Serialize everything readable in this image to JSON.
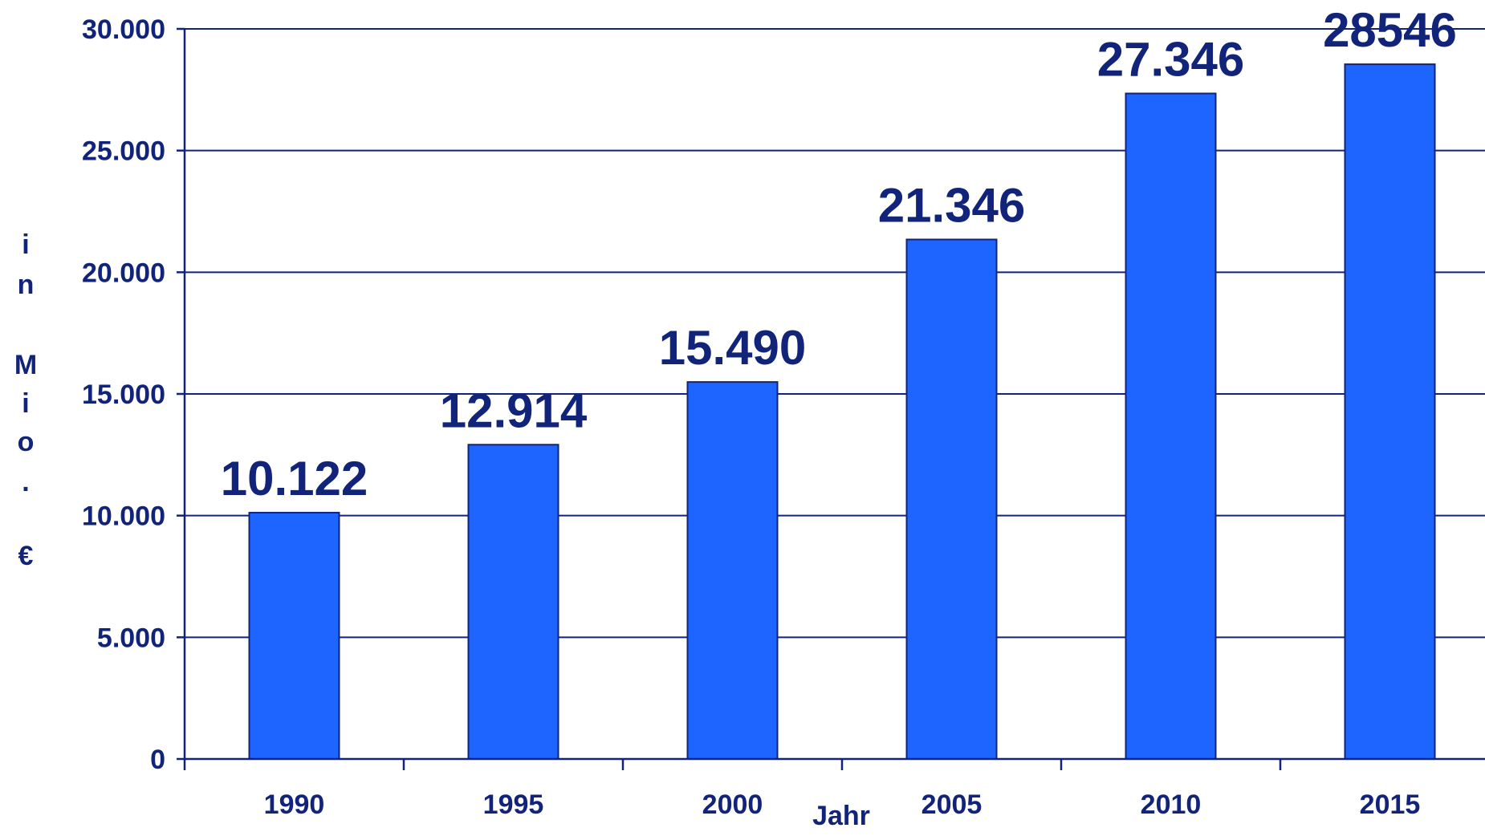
{
  "chart_data": {
    "type": "bar",
    "categories": [
      "1990",
      "1995",
      "2000",
      "2005",
      "2010",
      "2015"
    ],
    "values": [
      10122,
      12914,
      15490,
      21346,
      27346,
      28546
    ],
    "data_labels": [
      "10.122",
      "12.914",
      "15.490",
      "21.346",
      "27.346",
      "28546"
    ],
    "title": "",
    "xlabel": "Jahr",
    "ylabel_chars": [
      "i",
      "n",
      "M",
      "i",
      "o",
      ".",
      "€"
    ],
    "ylim": [
      0,
      30000
    ],
    "yticks": [
      0,
      5000,
      10000,
      15000,
      20000,
      25000,
      30000
    ],
    "ytick_labels": [
      "0",
      "5.000",
      "10.000",
      "15.000",
      "20.000",
      "25.000",
      "30.000"
    ],
    "grid": true,
    "legend": "none",
    "colors": {
      "bar_fill": "#1e64ff",
      "bar_stroke": "#12237a",
      "text": "#12237a",
      "gridline": "#12237a"
    }
  }
}
